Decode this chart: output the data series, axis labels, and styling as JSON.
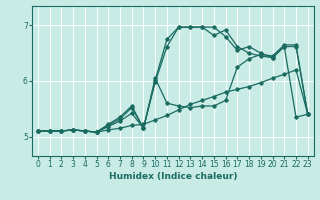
{
  "xlabel": "Humidex (Indice chaleur)",
  "xlim": [
    -0.5,
    23.5
  ],
  "ylim": [
    4.65,
    7.35
  ],
  "yticks": [
    5,
    6,
    7
  ],
  "xticks": [
    0,
    1,
    2,
    3,
    4,
    5,
    6,
    7,
    8,
    9,
    10,
    11,
    12,
    13,
    14,
    15,
    16,
    17,
    18,
    19,
    20,
    21,
    22,
    23
  ],
  "bg_color": "#c8ebe6",
  "line_color": "#1a6b60",
  "grid_color": "#ffffff",
  "lines": [
    {
      "x": [
        0,
        1,
        2,
        3,
        4,
        5,
        6,
        7,
        8,
        9,
        10,
        11,
        12,
        13,
        14,
        15,
        16,
        17,
        18,
        19,
        20,
        21,
        22,
        23
      ],
      "y": [
        5.1,
        5.1,
        5.1,
        5.12,
        5.1,
        5.08,
        5.12,
        5.15,
        5.2,
        5.22,
        5.3,
        5.38,
        5.48,
        5.58,
        5.65,
        5.72,
        5.8,
        5.85,
        5.9,
        5.97,
        6.05,
        6.12,
        6.2,
        5.4
      ]
    },
    {
      "x": [
        0,
        1,
        2,
        3,
        4,
        5,
        6,
        7,
        8,
        9,
        10,
        11,
        12,
        13,
        14,
        15,
        16,
        17,
        18,
        19,
        20,
        21,
        22,
        23
      ],
      "y": [
        5.1,
        5.1,
        5.1,
        5.12,
        5.1,
        5.08,
        5.18,
        5.28,
        5.42,
        5.15,
        5.98,
        6.62,
        6.97,
        6.97,
        6.97,
        6.97,
        6.8,
        6.55,
        6.62,
        6.5,
        6.42,
        6.62,
        5.35,
        5.4
      ]
    },
    {
      "x": [
        0,
        1,
        2,
        3,
        4,
        5,
        6,
        7,
        8,
        9,
        10,
        11,
        12,
        13,
        14,
        15,
        16,
        17,
        18,
        19,
        20,
        21,
        22,
        23
      ],
      "y": [
        5.1,
        5.1,
        5.1,
        5.12,
        5.1,
        5.08,
        5.2,
        5.32,
        5.52,
        5.15,
        6.02,
        6.75,
        6.97,
        6.97,
        6.97,
        6.82,
        6.92,
        6.62,
        6.5,
        6.45,
        6.42,
        6.62,
        6.62,
        5.4
      ]
    },
    {
      "x": [
        0,
        1,
        2,
        3,
        4,
        5,
        6,
        7,
        8,
        9,
        10,
        11,
        12,
        13,
        14,
        15,
        16,
        17,
        18,
        19,
        20,
        21,
        22,
        23
      ],
      "y": [
        5.1,
        5.1,
        5.1,
        5.12,
        5.1,
        5.08,
        5.22,
        5.35,
        5.55,
        5.15,
        6.05,
        5.6,
        5.55,
        5.52,
        5.55,
        5.55,
        5.65,
        6.25,
        6.4,
        6.48,
        6.45,
        6.65,
        6.65,
        5.4
      ]
    }
  ]
}
